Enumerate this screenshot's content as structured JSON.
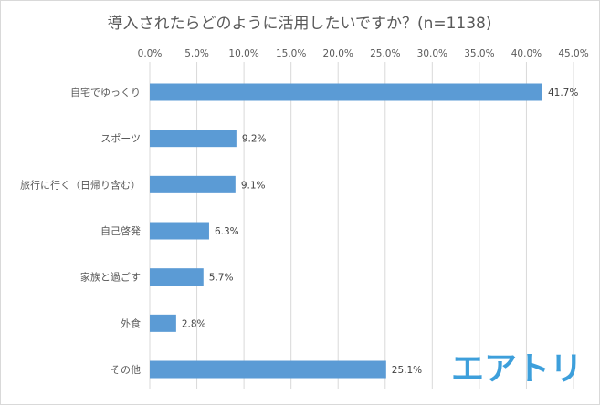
{
  "chart_data": {
    "type": "bar",
    "orientation": "horizontal",
    "title": "導入されたらどのように活用したいですか？(n=1138)",
    "categories": [
      "自宅でゆっくり",
      "スポーツ",
      "旅行に行く（日帰り含む）",
      "自己啓発",
      "家族と過ごす",
      "外食",
      "その他"
    ],
    "values": [
      41.7,
      9.2,
      9.1,
      6.3,
      5.7,
      2.8,
      25.1
    ],
    "value_labels": [
      "41.7%",
      "9.2%",
      "9.1%",
      "6.3%",
      "5.7%",
      "2.8%",
      "25.1%"
    ],
    "x_ticks": [
      "0.0%",
      "5.0%",
      "10.0%",
      "15.0%",
      "20.0%",
      "25.0%",
      "30.0%",
      "35.0%",
      "40.0%",
      "45.0%"
    ],
    "xlim": [
      0,
      45
    ],
    "x_tick_step": 5,
    "axis_position": "top",
    "grid": true,
    "bar_color": "#5b9bd5",
    "grid_color": "#d9d9d9",
    "text_color": "#595959"
  },
  "logo": {
    "text": "エアトリ",
    "color": "#3d9fdb"
  }
}
